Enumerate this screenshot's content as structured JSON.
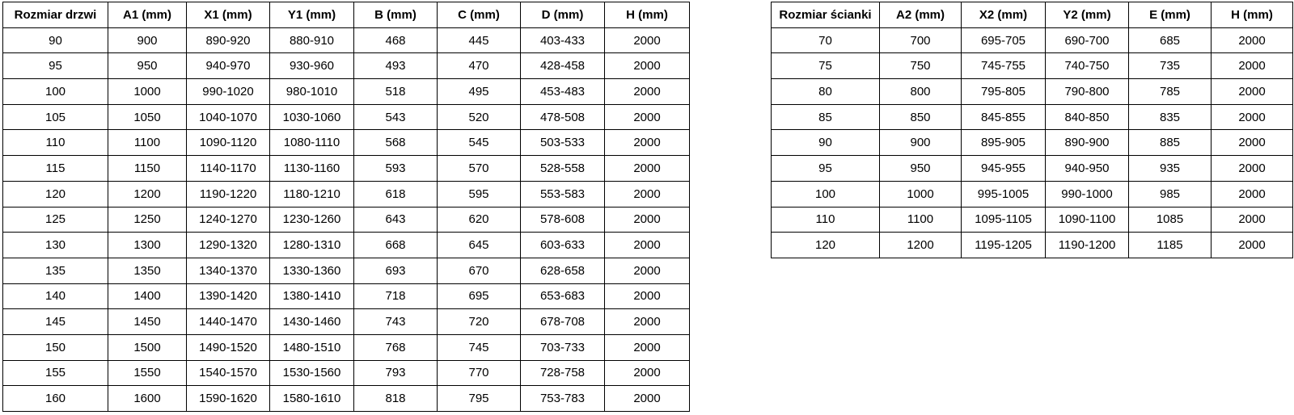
{
  "colors": {
    "border": "#000000",
    "text": "#000000",
    "background": "#ffffff"
  },
  "door_table": {
    "headers": [
      "Rozmiar drzwi",
      "A1 (mm)",
      "X1 (mm)",
      "Y1 (mm)",
      "B (mm)",
      "C (mm)",
      "D (mm)",
      "H (mm)"
    ],
    "rows": [
      [
        "90",
        "900",
        "890-920",
        "880-910",
        "468",
        "445",
        "403-433",
        "2000"
      ],
      [
        "95",
        "950",
        "940-970",
        "930-960",
        "493",
        "470",
        "428-458",
        "2000"
      ],
      [
        "100",
        "1000",
        "990-1020",
        "980-1010",
        "518",
        "495",
        "453-483",
        "2000"
      ],
      [
        "105",
        "1050",
        "1040-1070",
        "1030-1060",
        "543",
        "520",
        "478-508",
        "2000"
      ],
      [
        "110",
        "1100",
        "1090-1120",
        "1080-1110",
        "568",
        "545",
        "503-533",
        "2000"
      ],
      [
        "115",
        "1150",
        "1140-1170",
        "1130-1160",
        "593",
        "570",
        "528-558",
        "2000"
      ],
      [
        "120",
        "1200",
        "1190-1220",
        "1180-1210",
        "618",
        "595",
        "553-583",
        "2000"
      ],
      [
        "125",
        "1250",
        "1240-1270",
        "1230-1260",
        "643",
        "620",
        "578-608",
        "2000"
      ],
      [
        "130",
        "1300",
        "1290-1320",
        "1280-1310",
        "668",
        "645",
        "603-633",
        "2000"
      ],
      [
        "135",
        "1350",
        "1340-1370",
        "1330-1360",
        "693",
        "670",
        "628-658",
        "2000"
      ],
      [
        "140",
        "1400",
        "1390-1420",
        "1380-1410",
        "718",
        "695",
        "653-683",
        "2000"
      ],
      [
        "145",
        "1450",
        "1440-1470",
        "1430-1460",
        "743",
        "720",
        "678-708",
        "2000"
      ],
      [
        "150",
        "1500",
        "1490-1520",
        "1480-1510",
        "768",
        "745",
        "703-733",
        "2000"
      ],
      [
        "155",
        "1550",
        "1540-1570",
        "1530-1560",
        "793",
        "770",
        "728-758",
        "2000"
      ],
      [
        "160",
        "1600",
        "1590-1620",
        "1580-1610",
        "818",
        "795",
        "753-783",
        "2000"
      ]
    ]
  },
  "wall_table": {
    "headers": [
      "Rozmiar ścianki",
      "A2 (mm)",
      "X2 (mm)",
      "Y2 (mm)",
      "E (mm)",
      "H (mm)"
    ],
    "rows": [
      [
        "70",
        "700",
        "695-705",
        "690-700",
        "685",
        "2000"
      ],
      [
        "75",
        "750",
        "745-755",
        "740-750",
        "735",
        "2000"
      ],
      [
        "80",
        "800",
        "795-805",
        "790-800",
        "785",
        "2000"
      ],
      [
        "85",
        "850",
        "845-855",
        "840-850",
        "835",
        "2000"
      ],
      [
        "90",
        "900",
        "895-905",
        "890-900",
        "885",
        "2000"
      ],
      [
        "95",
        "950",
        "945-955",
        "940-950",
        "935",
        "2000"
      ],
      [
        "100",
        "1000",
        "995-1005",
        "990-1000",
        "985",
        "2000"
      ],
      [
        "110",
        "1100",
        "1095-1105",
        "1090-1100",
        "1085",
        "2000"
      ],
      [
        "120",
        "1200",
        "1195-1205",
        "1190-1200",
        "1185",
        "2000"
      ]
    ]
  }
}
